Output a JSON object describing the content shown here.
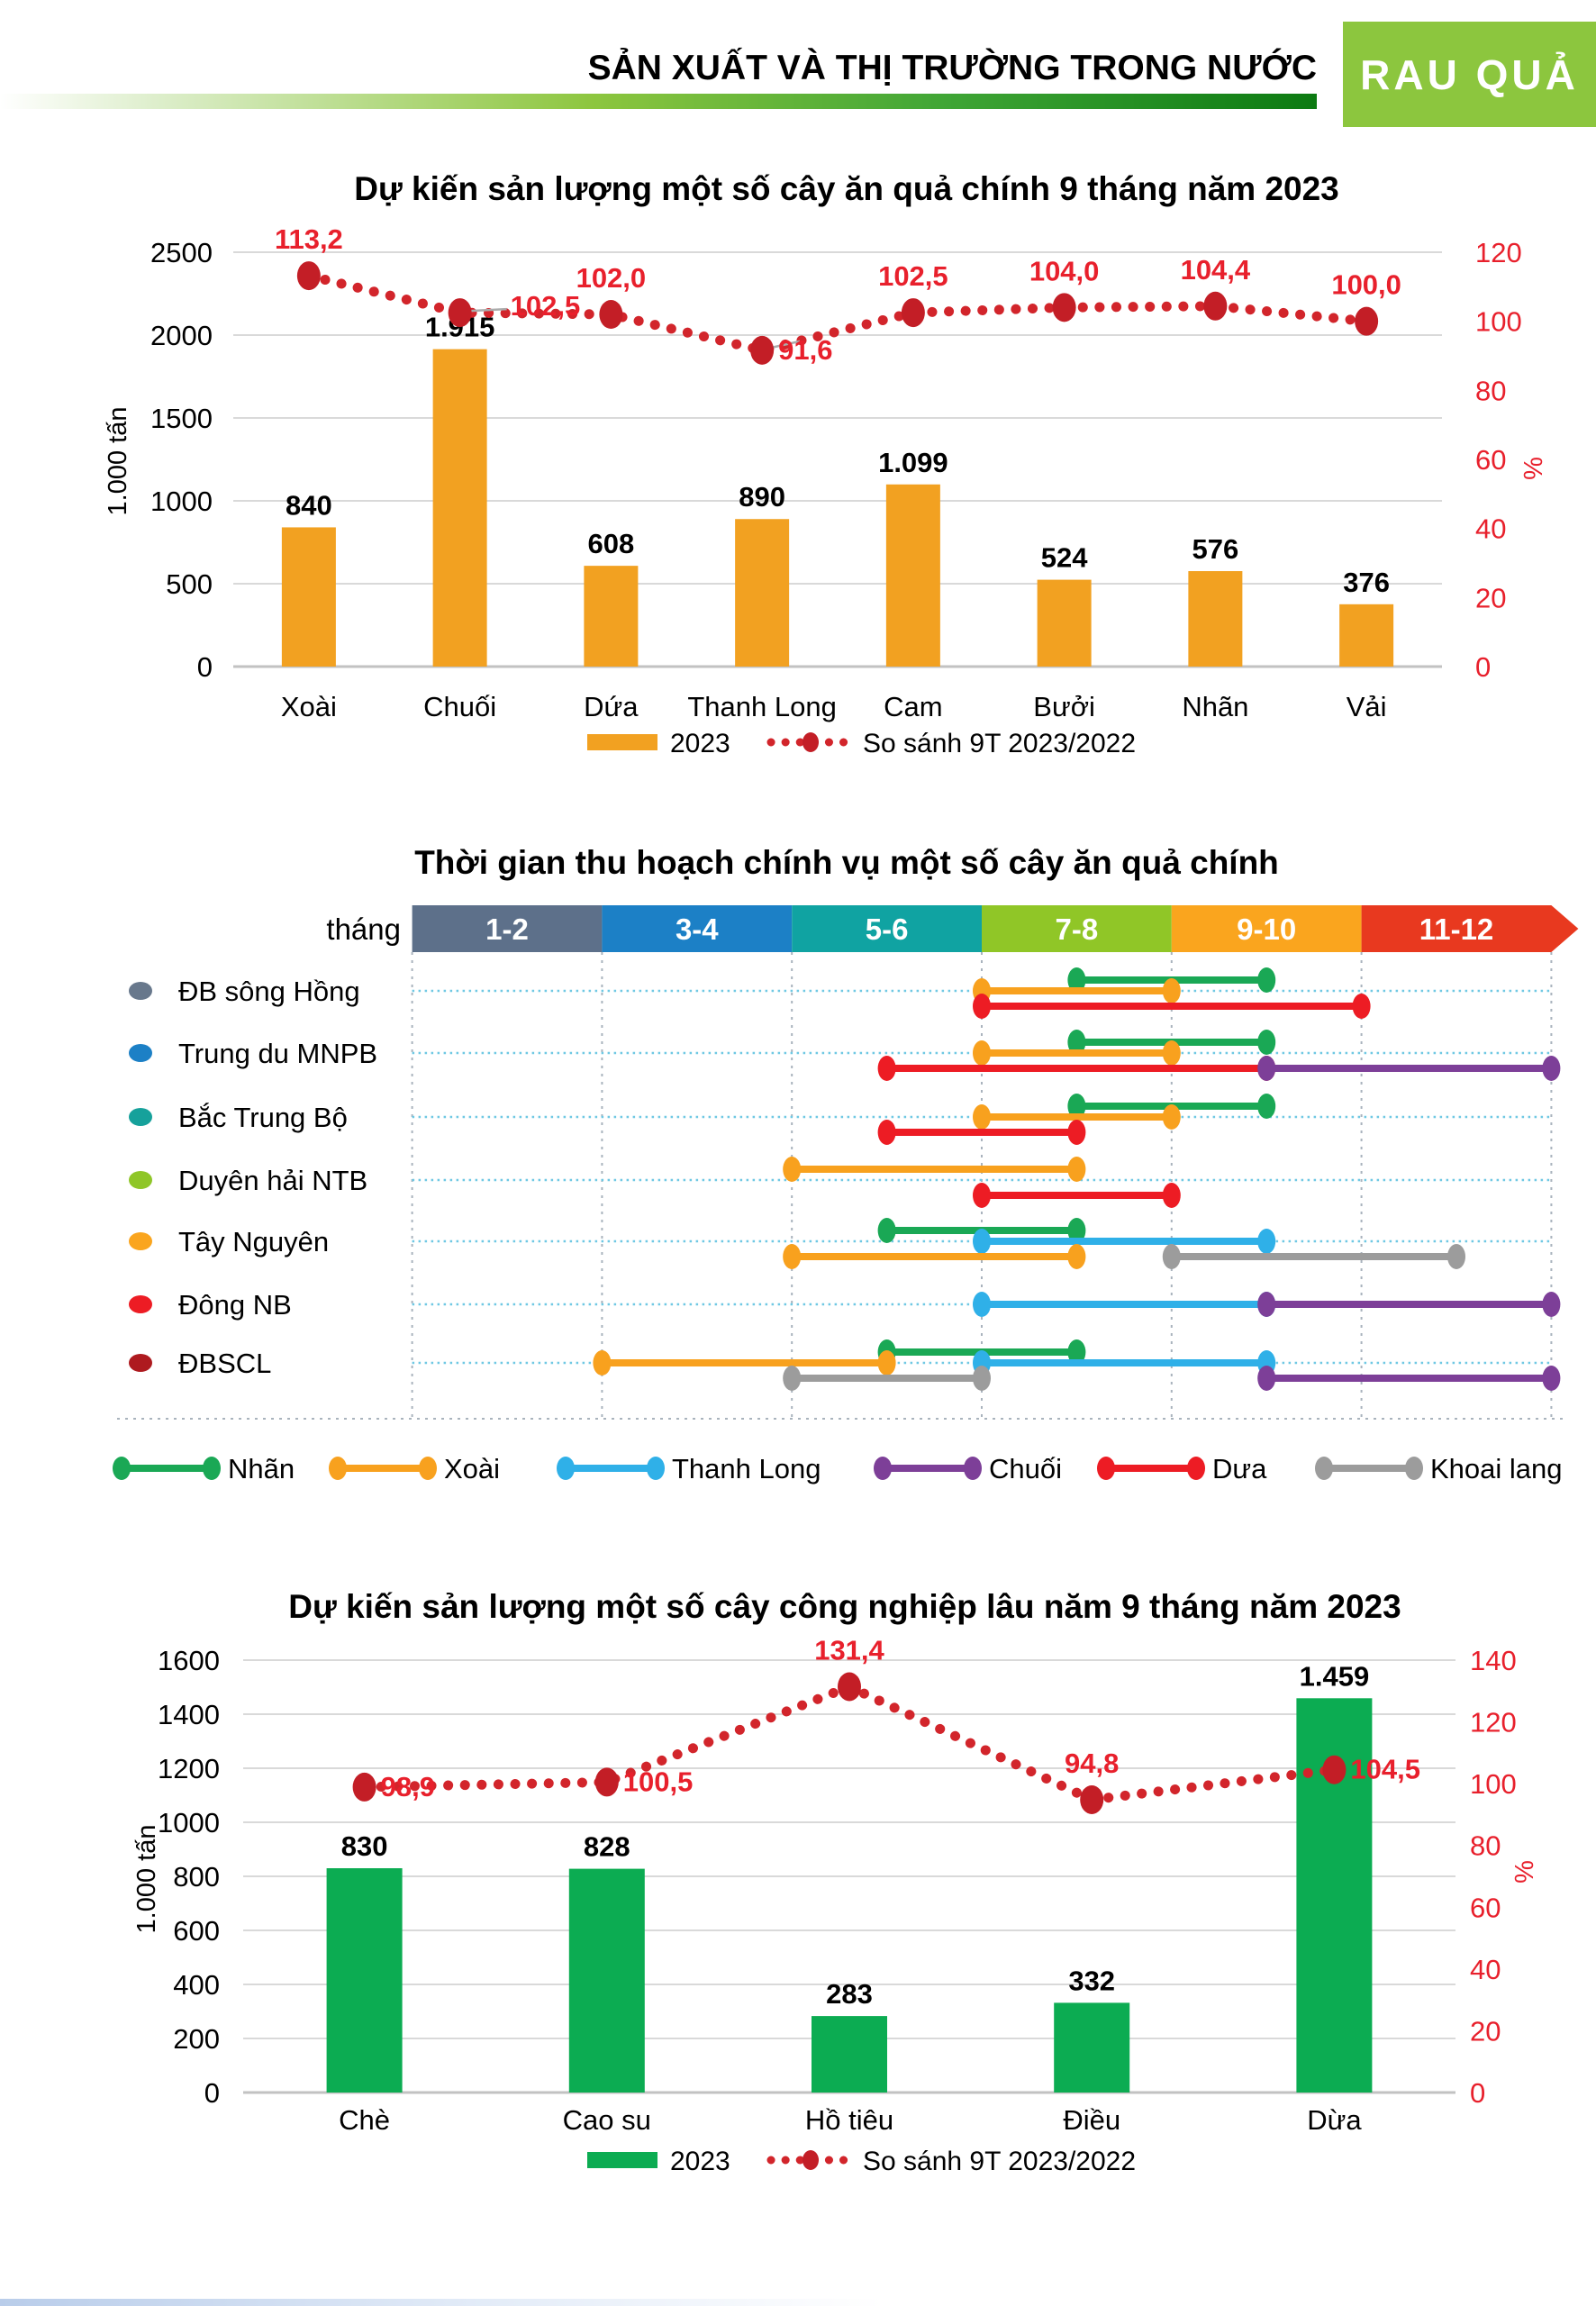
{
  "header": {
    "title": "SẢN XUẤT VÀ THỊ TRƯỜNG TRONG NƯỚC",
    "badge": "RAU QUẢ",
    "badge_color": "#8CC63E"
  },
  "chart_data": [
    {
      "type": "bar",
      "title": "Dự kiến sản lượng một số cây ăn quả chính 9 tháng năm 2023",
      "categories": [
        "Xoài",
        "Chuối",
        "Dứa",
        "Thanh Long",
        "Cam",
        "Bưởi",
        "Nhãn",
        "Vải"
      ],
      "series": [
        {
          "name": "2023",
          "type": "bar",
          "values": [
            840,
            1915,
            608,
            890,
            1099,
            524,
            576,
            376
          ],
          "value_labels": [
            "840",
            "1.915",
            "608",
            "890",
            "1.099",
            "524",
            "576",
            "376"
          ]
        },
        {
          "name": "So sánh 9T 2023/2022",
          "type": "line",
          "axis": "right",
          "values": [
            113.2,
            102.5,
            102.0,
            91.6,
            102.5,
            104.0,
            104.4,
            100.0
          ],
          "value_labels": [
            "113,2",
            "102,5",
            "102,0",
            "91,6",
            "102,5",
            "104,0",
            "104,4",
            "100,0"
          ],
          "label_placement": [
            "above",
            "right-far",
            "above",
            "right",
            "above",
            "above",
            "above",
            "above"
          ]
        }
      ],
      "ylabel": "1.000 tấn",
      "y2label": "%",
      "ylim": [
        0,
        2500
      ],
      "yticks": [
        0,
        500,
        1000,
        1500,
        2000,
        2500
      ],
      "y2lim": [
        0,
        120
      ],
      "y2ticks": [
        0,
        20,
        40,
        60,
        80,
        100,
        120
      ],
      "grid": true,
      "legend_position": "bottom",
      "colors": {
        "bar": "#F2A121",
        "line": "#D2252B",
        "marker": "#C31E26",
        "value_label": "#E8202C",
        "tick2": "#E8202C"
      }
    },
    {
      "type": "gantt",
      "title": "Thời gian thu hoạch chính vụ một số cây ăn quả chính",
      "axis_label": "tháng",
      "month_bands": [
        {
          "label": "1-2",
          "color": "#5D708A"
        },
        {
          "label": "3-4",
          "color": "#1C80C6"
        },
        {
          "label": "5-6",
          "color": "#10A3A2"
        },
        {
          "label": "7-8",
          "color": "#90C627"
        },
        {
          "label": "9-10",
          "color": "#FAA51E"
        },
        {
          "label": "11-12",
          "color": "#E8391F"
        }
      ],
      "regions": [
        {
          "name": "ĐB sông Hồng",
          "color": "#68788C"
        },
        {
          "name": "Trung du MNPB",
          "color": "#1C80C6"
        },
        {
          "name": "Bắc Trung Bộ",
          "color": "#16A19B"
        },
        {
          "name": "Duyên hải NTB",
          "color": "#8FC628"
        },
        {
          "name": "Tây Nguyên",
          "color": "#FAA51E"
        },
        {
          "name": "Đông NB",
          "color": "#ED1C24"
        },
        {
          "name": "ĐBSCL",
          "color": "#AE1A1F"
        }
      ],
      "crops": [
        {
          "name": "Nhãn",
          "color": "#1AA855"
        },
        {
          "name": "Xoài",
          "color": "#F8A11E"
        },
        {
          "name": "Thanh Long",
          "color": "#2FB0E8"
        },
        {
          "name": "Chuối",
          "color": "#7D3F98"
        },
        {
          "name": "Dưa",
          "color": "#ED1C24"
        },
        {
          "name": "Khoai lang",
          "color": "#9C9C9C"
        }
      ],
      "harvest_segments": [
        {
          "region": "ĐB sông Hồng",
          "crop": "Nhãn",
          "start_month": 8,
          "end_month": 10,
          "lane": -1
        },
        {
          "region": "ĐB sông Hồng",
          "crop": "Xoài",
          "start_month": 7,
          "end_month": 9,
          "lane": 0
        },
        {
          "region": "ĐB sông Hồng",
          "crop": "Dưa",
          "start_month": 7,
          "end_month": 11,
          "lane": 1
        },
        {
          "region": "Trung du MNPB",
          "crop": "Nhãn",
          "start_month": 8,
          "end_month": 10,
          "lane": -1
        },
        {
          "region": "Trung du MNPB",
          "crop": "Xoài",
          "start_month": 7,
          "end_month": 9,
          "lane": 0
        },
        {
          "region": "Trung du MNPB",
          "crop": "Dưa",
          "start_month": 6,
          "end_month": 10,
          "lane": 1
        },
        {
          "region": "Trung du MNPB",
          "crop": "Chuối",
          "start_month": 10,
          "end_month": 13,
          "lane": 1
        },
        {
          "region": "Bắc Trung Bộ",
          "crop": "Nhãn",
          "start_month": 8,
          "end_month": 10,
          "lane": -1
        },
        {
          "region": "Bắc Trung Bộ",
          "crop": "Xoài",
          "start_month": 7,
          "end_month": 9,
          "lane": 0
        },
        {
          "region": "Bắc Trung Bộ",
          "crop": "Dưa",
          "start_month": 6,
          "end_month": 8,
          "lane": 1
        },
        {
          "region": "Duyên hải NTB",
          "crop": "Xoài",
          "start_month": 5,
          "end_month": 8,
          "lane": -1
        },
        {
          "region": "Duyên hải NTB",
          "crop": "Dưa",
          "start_month": 7,
          "end_month": 9,
          "lane": 1
        },
        {
          "region": "Tây Nguyên",
          "crop": "Nhãn",
          "start_month": 6,
          "end_month": 8,
          "lane": -1
        },
        {
          "region": "Tây Nguyên",
          "crop": "Thanh Long",
          "start_month": 7,
          "end_month": 10,
          "lane": 0
        },
        {
          "region": "Tây Nguyên",
          "crop": "Xoài",
          "start_month": 5,
          "end_month": 8,
          "lane": 1
        },
        {
          "region": "Tây Nguyên",
          "crop": "Khoai lang",
          "start_month": 9,
          "end_month": 12,
          "lane": 1
        },
        {
          "region": "Đông NB",
          "crop": "Thanh Long",
          "start_month": 7,
          "end_month": 10,
          "lane": 0
        },
        {
          "region": "Đông NB",
          "crop": "Chuối",
          "start_month": 10,
          "end_month": 13,
          "lane": 0
        },
        {
          "region": "ĐBSCL",
          "crop": "Nhãn",
          "start_month": 6,
          "end_month": 8,
          "lane": -1
        },
        {
          "region": "ĐBSCL",
          "crop": "Xoài",
          "start_month": 3,
          "end_month": 6,
          "lane": 0
        },
        {
          "region": "ĐBSCL",
          "crop": "Thanh Long",
          "start_month": 7,
          "end_month": 10,
          "lane": 0
        },
        {
          "region": "ĐBSCL",
          "crop": "Khoai lang",
          "start_month": 5,
          "end_month": 7,
          "lane": 1
        },
        {
          "region": "ĐBSCL",
          "crop": "Chuối",
          "start_month": 10,
          "end_month": 13,
          "lane": 1
        }
      ]
    },
    {
      "type": "bar",
      "title": "Dự kiến sản lượng một số cây công nghiệp lâu năm 9 tháng năm 2023",
      "categories": [
        "Chè",
        "Cao su",
        "Hồ tiêu",
        "Điều",
        "Dừa"
      ],
      "series": [
        {
          "name": "2023",
          "type": "bar",
          "values": [
            830,
            828,
            283,
            332,
            1459
          ],
          "value_labels": [
            "830",
            "828",
            "283",
            "332",
            "1.459"
          ]
        },
        {
          "name": "So sánh 9T 2023/2022",
          "type": "line",
          "axis": "right",
          "values": [
            98.9,
            100.5,
            131.4,
            94.8,
            104.5
          ],
          "value_labels": [
            "98,9",
            "100,5",
            "131,4",
            "94,8",
            "104,5"
          ],
          "label_placement": [
            "right",
            "right",
            "above",
            "above",
            "right"
          ]
        }
      ],
      "ylabel": "1.000 tấn",
      "y2label": "%",
      "ylim": [
        0,
        1600
      ],
      "yticks": [
        0,
        200,
        400,
        600,
        800,
        1000,
        1200,
        1400,
        1600
      ],
      "y2lim": [
        0,
        140
      ],
      "y2ticks": [
        0,
        20,
        40,
        60,
        80,
        100,
        120,
        140
      ],
      "grid": true,
      "legend_position": "bottom",
      "colors": {
        "bar": "#0CAC52",
        "line": "#D2252B",
        "marker": "#C31E26",
        "value_label": "#E8202C",
        "tick2": "#E8202C"
      }
    }
  ]
}
